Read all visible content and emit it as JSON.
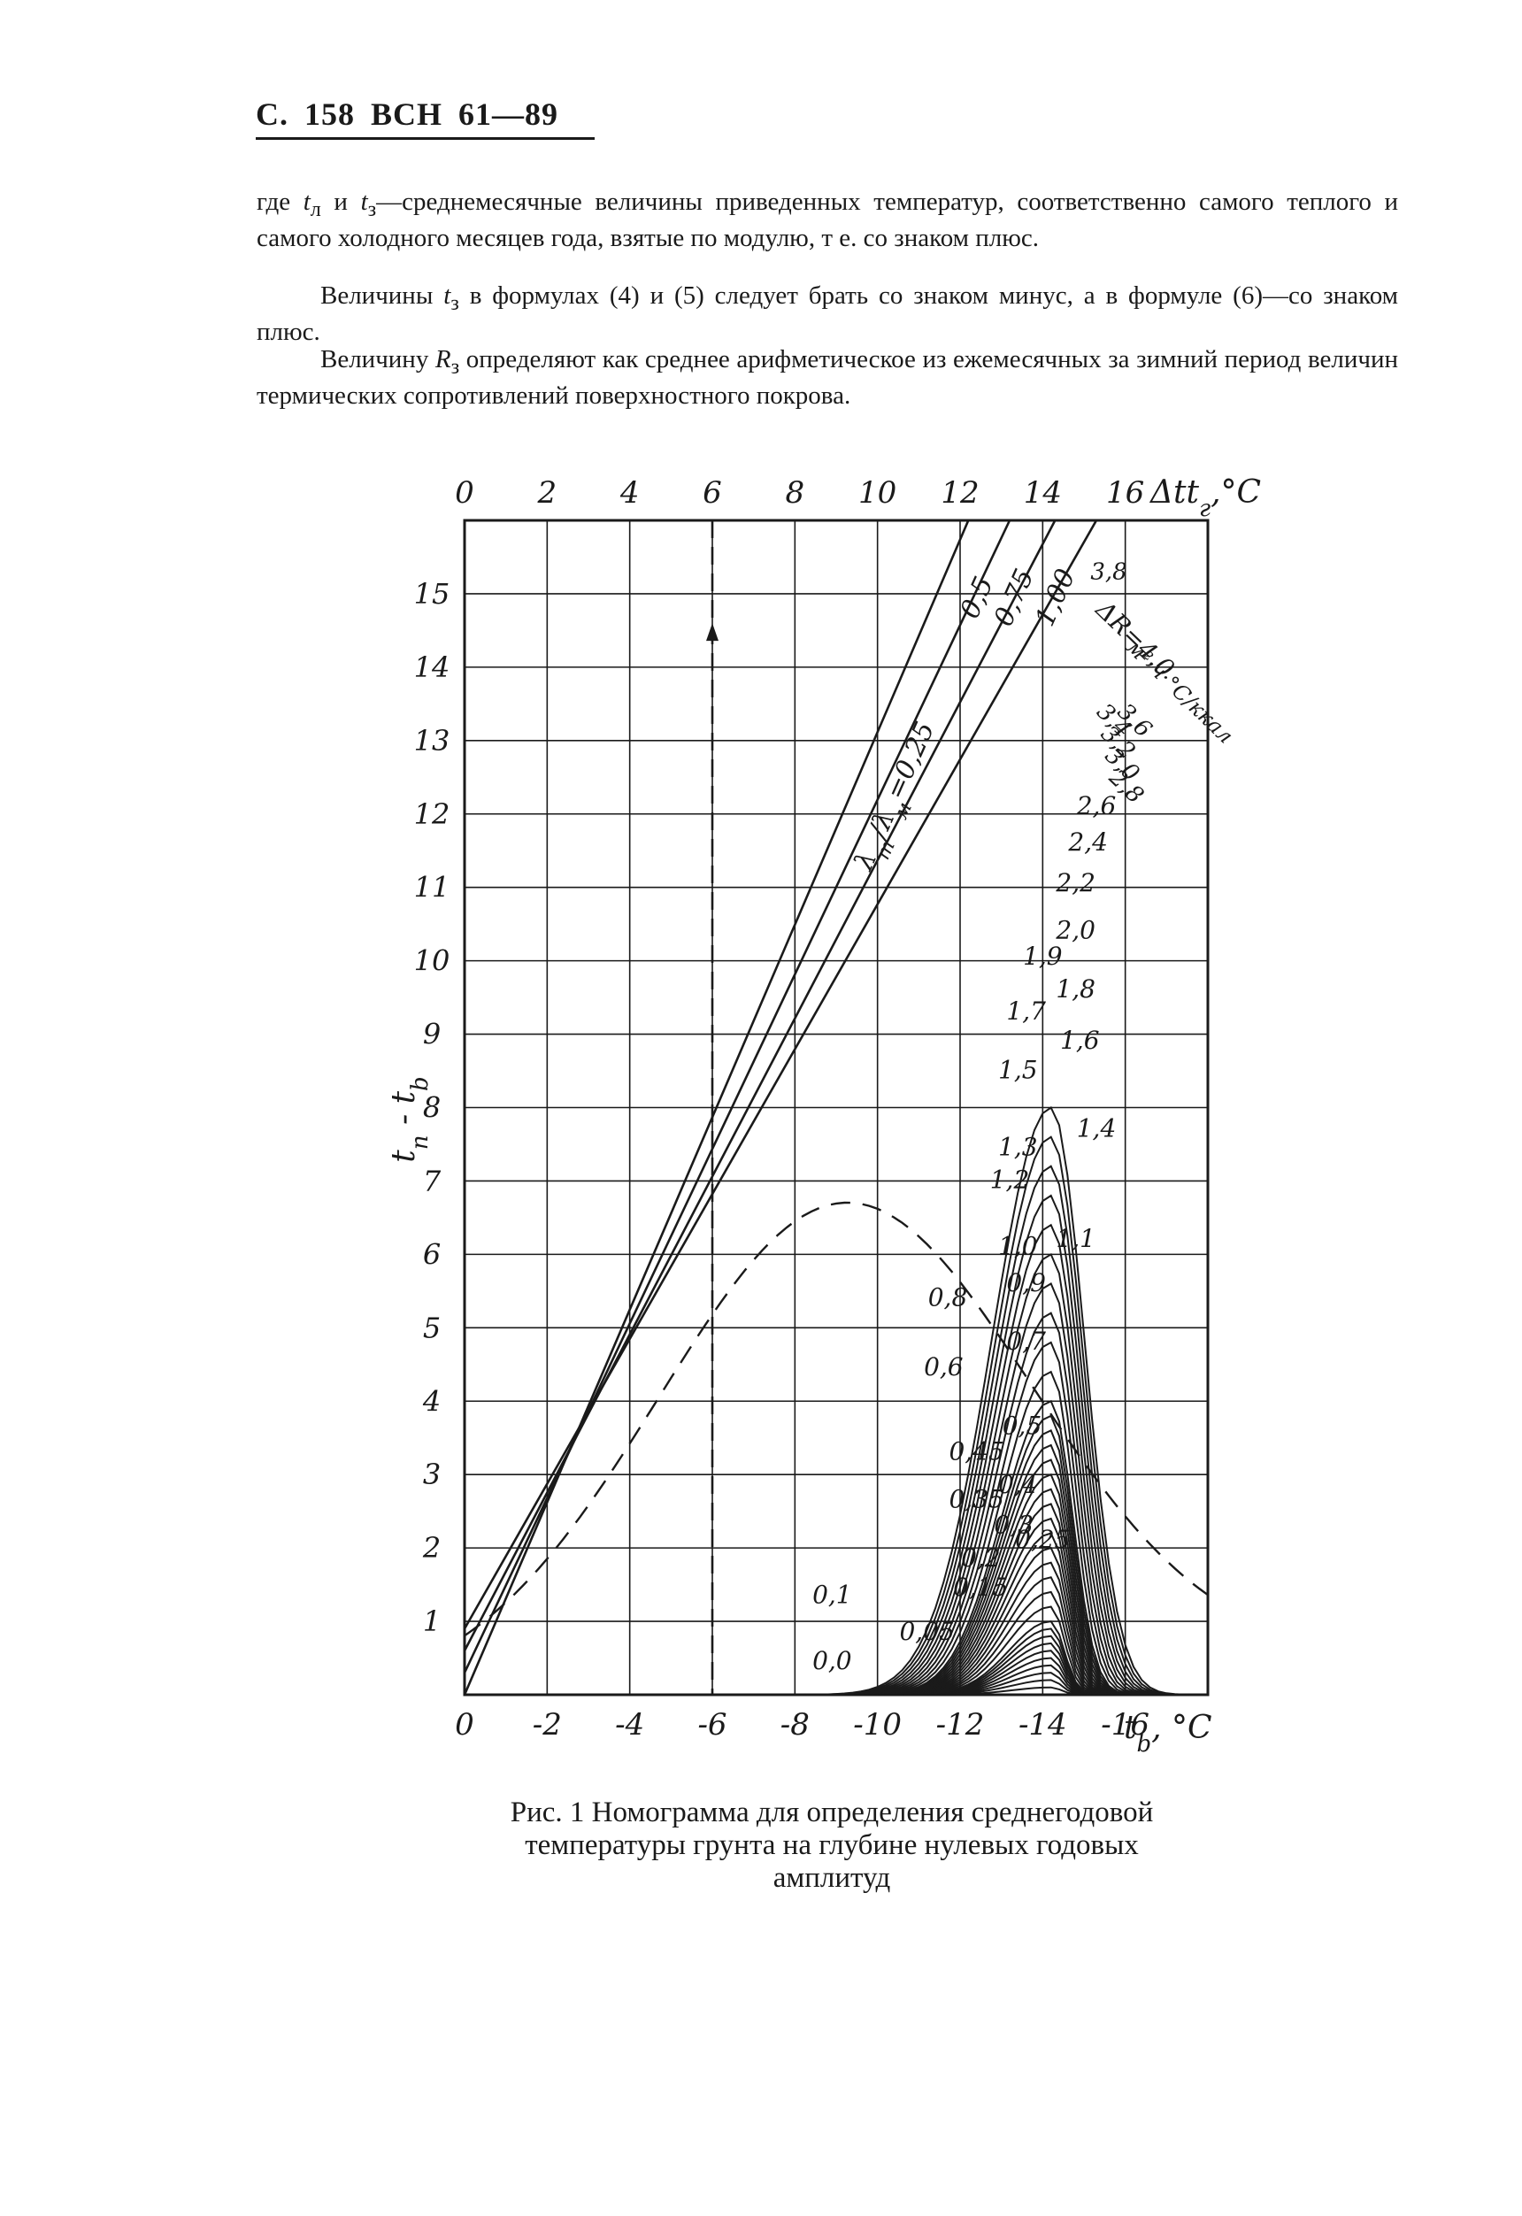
{
  "header": {
    "page_prefix": "С.",
    "page_number": "158",
    "standard": "ВСН",
    "standard_number": "61—89"
  },
  "body_text": {
    "p1_a": "где",
    "p1_sym1": "t",
    "p1_sub1": "л",
    "p1_b": "и",
    "p1_sym2": "t",
    "p1_sub2": "з",
    "p1_c": "—среднемесячные величины приведенных температур, соответственно самого теплого и самого холодного месяцев года, взятые по модулю, т е. со знаком плюс.",
    "p2_a": "Величины",
    "p2_sym": "t",
    "p2_sub": "з",
    "p2_b": "в формулах (4) и (5) следует брать со знаком минус, а в формуле (6)—со знаком плюс.",
    "p3_a": "Величину",
    "p3_sym": "R",
    "p3_sub": "з",
    "p3_b": "определяют как среднее арифметическое из ежемесячных за зимний период величин термических сопротивлений поверхностного покрова."
  },
  "chart_data": {
    "type": "line",
    "top_axis": {
      "ticks": [
        "0",
        "2",
        "4",
        "6",
        "8",
        "10",
        "12",
        "14",
        "16"
      ],
      "label_symbol": "Δt",
      "label_sub": "г",
      "label_unit": ",°C",
      "range": [
        0,
        18
      ]
    },
    "bottom_axis": {
      "ticks": [
        "0",
        "-2",
        "-4",
        "-6",
        "-8",
        "-10",
        "-12",
        "-14",
        "-16"
      ],
      "label_symbol": "t",
      "label_sub": "b",
      "label_unit": ", °C",
      "range": [
        0,
        -18
      ]
    },
    "left_axis": {
      "ticks": [
        "1",
        "2",
        "3",
        "4",
        "5",
        "6",
        "7",
        "8",
        "9",
        "10",
        "11",
        "12",
        "13",
        "14",
        "15"
      ],
      "label_a": "t",
      "label_sub_a": "п",
      "label_mid": "- t",
      "label_sub_b": "b",
      "range": [
        0,
        16
      ]
    },
    "grid": true,
    "lambda_lines": {
      "label_prefix": "λ",
      "label_sub1": "т",
      "label_mid": "/λ",
      "label_sub2": "м",
      "labels": [
        "=0,25",
        "0,5",
        "0,75",
        "1,00"
      ],
      "values": [
        0.25,
        0.5,
        0.75,
        1.0
      ]
    },
    "dR_label": "ΔR=4,0",
    "dR_unit": "м²·ч·°С/ккал",
    "dR_labels": [
      "0,0",
      "0,05",
      "0,1",
      "0,15",
      "0,2",
      "0,25",
      "0,3",
      "0,35",
      "0,4",
      "0,45",
      "0,5",
      "0,6",
      "0,7",
      "0,8",
      "0,9",
      "1,0",
      "1,1",
      "1,2",
      "1,3",
      "1,4",
      "1,5",
      "1,6",
      "1,7",
      "1,8",
      "1,9",
      "2,0",
      "2,2",
      "2,4",
      "2,6",
      "2,8",
      "3,0",
      "3,2",
      "3,4",
      "3,6",
      "3,8"
    ],
    "dR_values": [
      0,
      0.05,
      0.1,
      0.15,
      0.2,
      0.25,
      0.3,
      0.35,
      0.4,
      0.45,
      0.5,
      0.6,
      0.7,
      0.8,
      0.9,
      1.0,
      1.1,
      1.2,
      1.3,
      1.4,
      1.5,
      1.6,
      1.7,
      1.8,
      1.9,
      2.0,
      2.2,
      2.4,
      2.6,
      2.8,
      3.0,
      3.2,
      3.4,
      3.6,
      3.8,
      4.0
    ]
  },
  "caption": {
    "line1": "Рис. 1 Номограмма для определения среднегодовой",
    "line2": "температуры грунта на глубине нулевых годовых",
    "line3": "амплитуд"
  }
}
